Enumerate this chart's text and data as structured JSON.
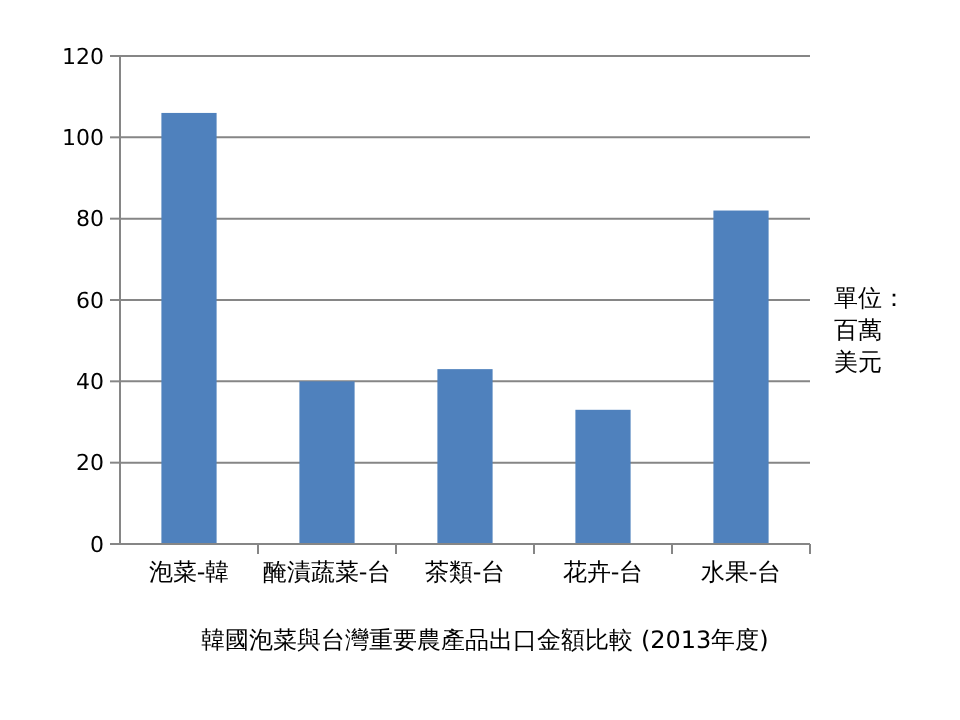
{
  "chart_data": {
    "type": "bar",
    "title": "韓國泡菜與台灣重要農產品出口金額比較 (2013年度)",
    "categories": [
      "泡菜-韓",
      "醃漬蔬菜-台",
      "茶類-台",
      "花卉-台",
      "水果-台"
    ],
    "values": [
      106,
      40,
      43,
      33,
      82
    ],
    "color": "#4f81bd",
    "ylim": [
      0,
      120
    ],
    "yticks": [
      0,
      20,
      40,
      60,
      80,
      100,
      120
    ],
    "grid": "y",
    "annotations": [
      "單位：百萬美元"
    ]
  }
}
